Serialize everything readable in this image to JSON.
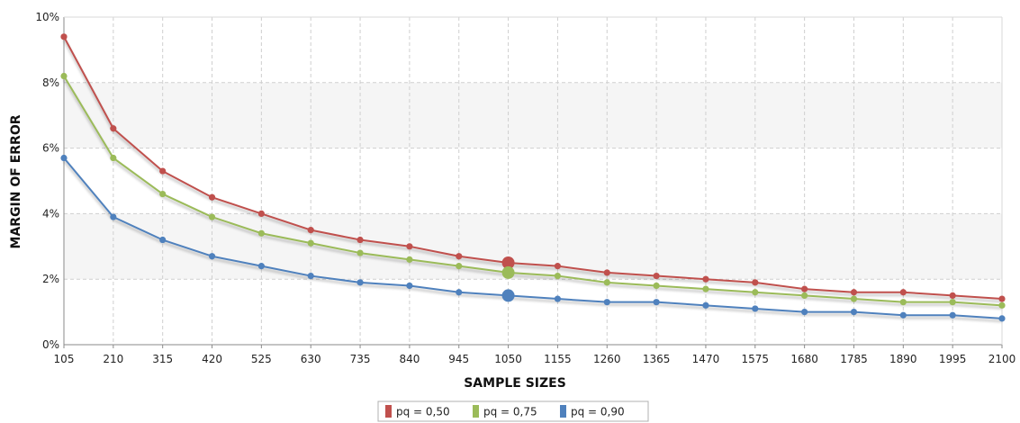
{
  "chart_data": {
    "type": "line",
    "title": "",
    "xlabel": "SAMPLE SIZES",
    "ylabel": "MARGIN OF ERROR",
    "x": [
      105,
      210,
      315,
      420,
      525,
      630,
      735,
      840,
      945,
      1050,
      1155,
      1260,
      1365,
      1470,
      1575,
      1680,
      1785,
      1890,
      1995,
      2100
    ],
    "y_ticks": [
      "0%",
      "2%",
      "4%",
      "6%",
      "8%",
      "10%"
    ],
    "ylim": [
      0,
      10
    ],
    "y_unit": "%",
    "grid": true,
    "legend_position": "bottom-center",
    "highlight_x": 1050,
    "series": [
      {
        "name": "pq = 0,50",
        "color": "#c0504d",
        "values": [
          9.4,
          6.6,
          5.3,
          4.5,
          4.0,
          3.5,
          3.2,
          3.0,
          2.7,
          2.5,
          2.4,
          2.2,
          2.1,
          2.0,
          1.9,
          1.7,
          1.6,
          1.6,
          1.5,
          1.4
        ]
      },
      {
        "name": "pq = 0,75",
        "color": "#9bbb59",
        "values": [
          8.2,
          5.7,
          4.6,
          3.9,
          3.4,
          3.1,
          2.8,
          2.6,
          2.4,
          2.2,
          2.1,
          1.9,
          1.8,
          1.7,
          1.6,
          1.5,
          1.4,
          1.3,
          1.3,
          1.2
        ]
      },
      {
        "name": "pq = 0,90",
        "color": "#4f81bd",
        "values": [
          5.7,
          3.9,
          3.2,
          2.7,
          2.4,
          2.1,
          1.9,
          1.8,
          1.6,
          1.5,
          1.4,
          1.3,
          1.3,
          1.2,
          1.1,
          1.0,
          1.0,
          0.9,
          0.9,
          0.8
        ]
      }
    ]
  }
}
